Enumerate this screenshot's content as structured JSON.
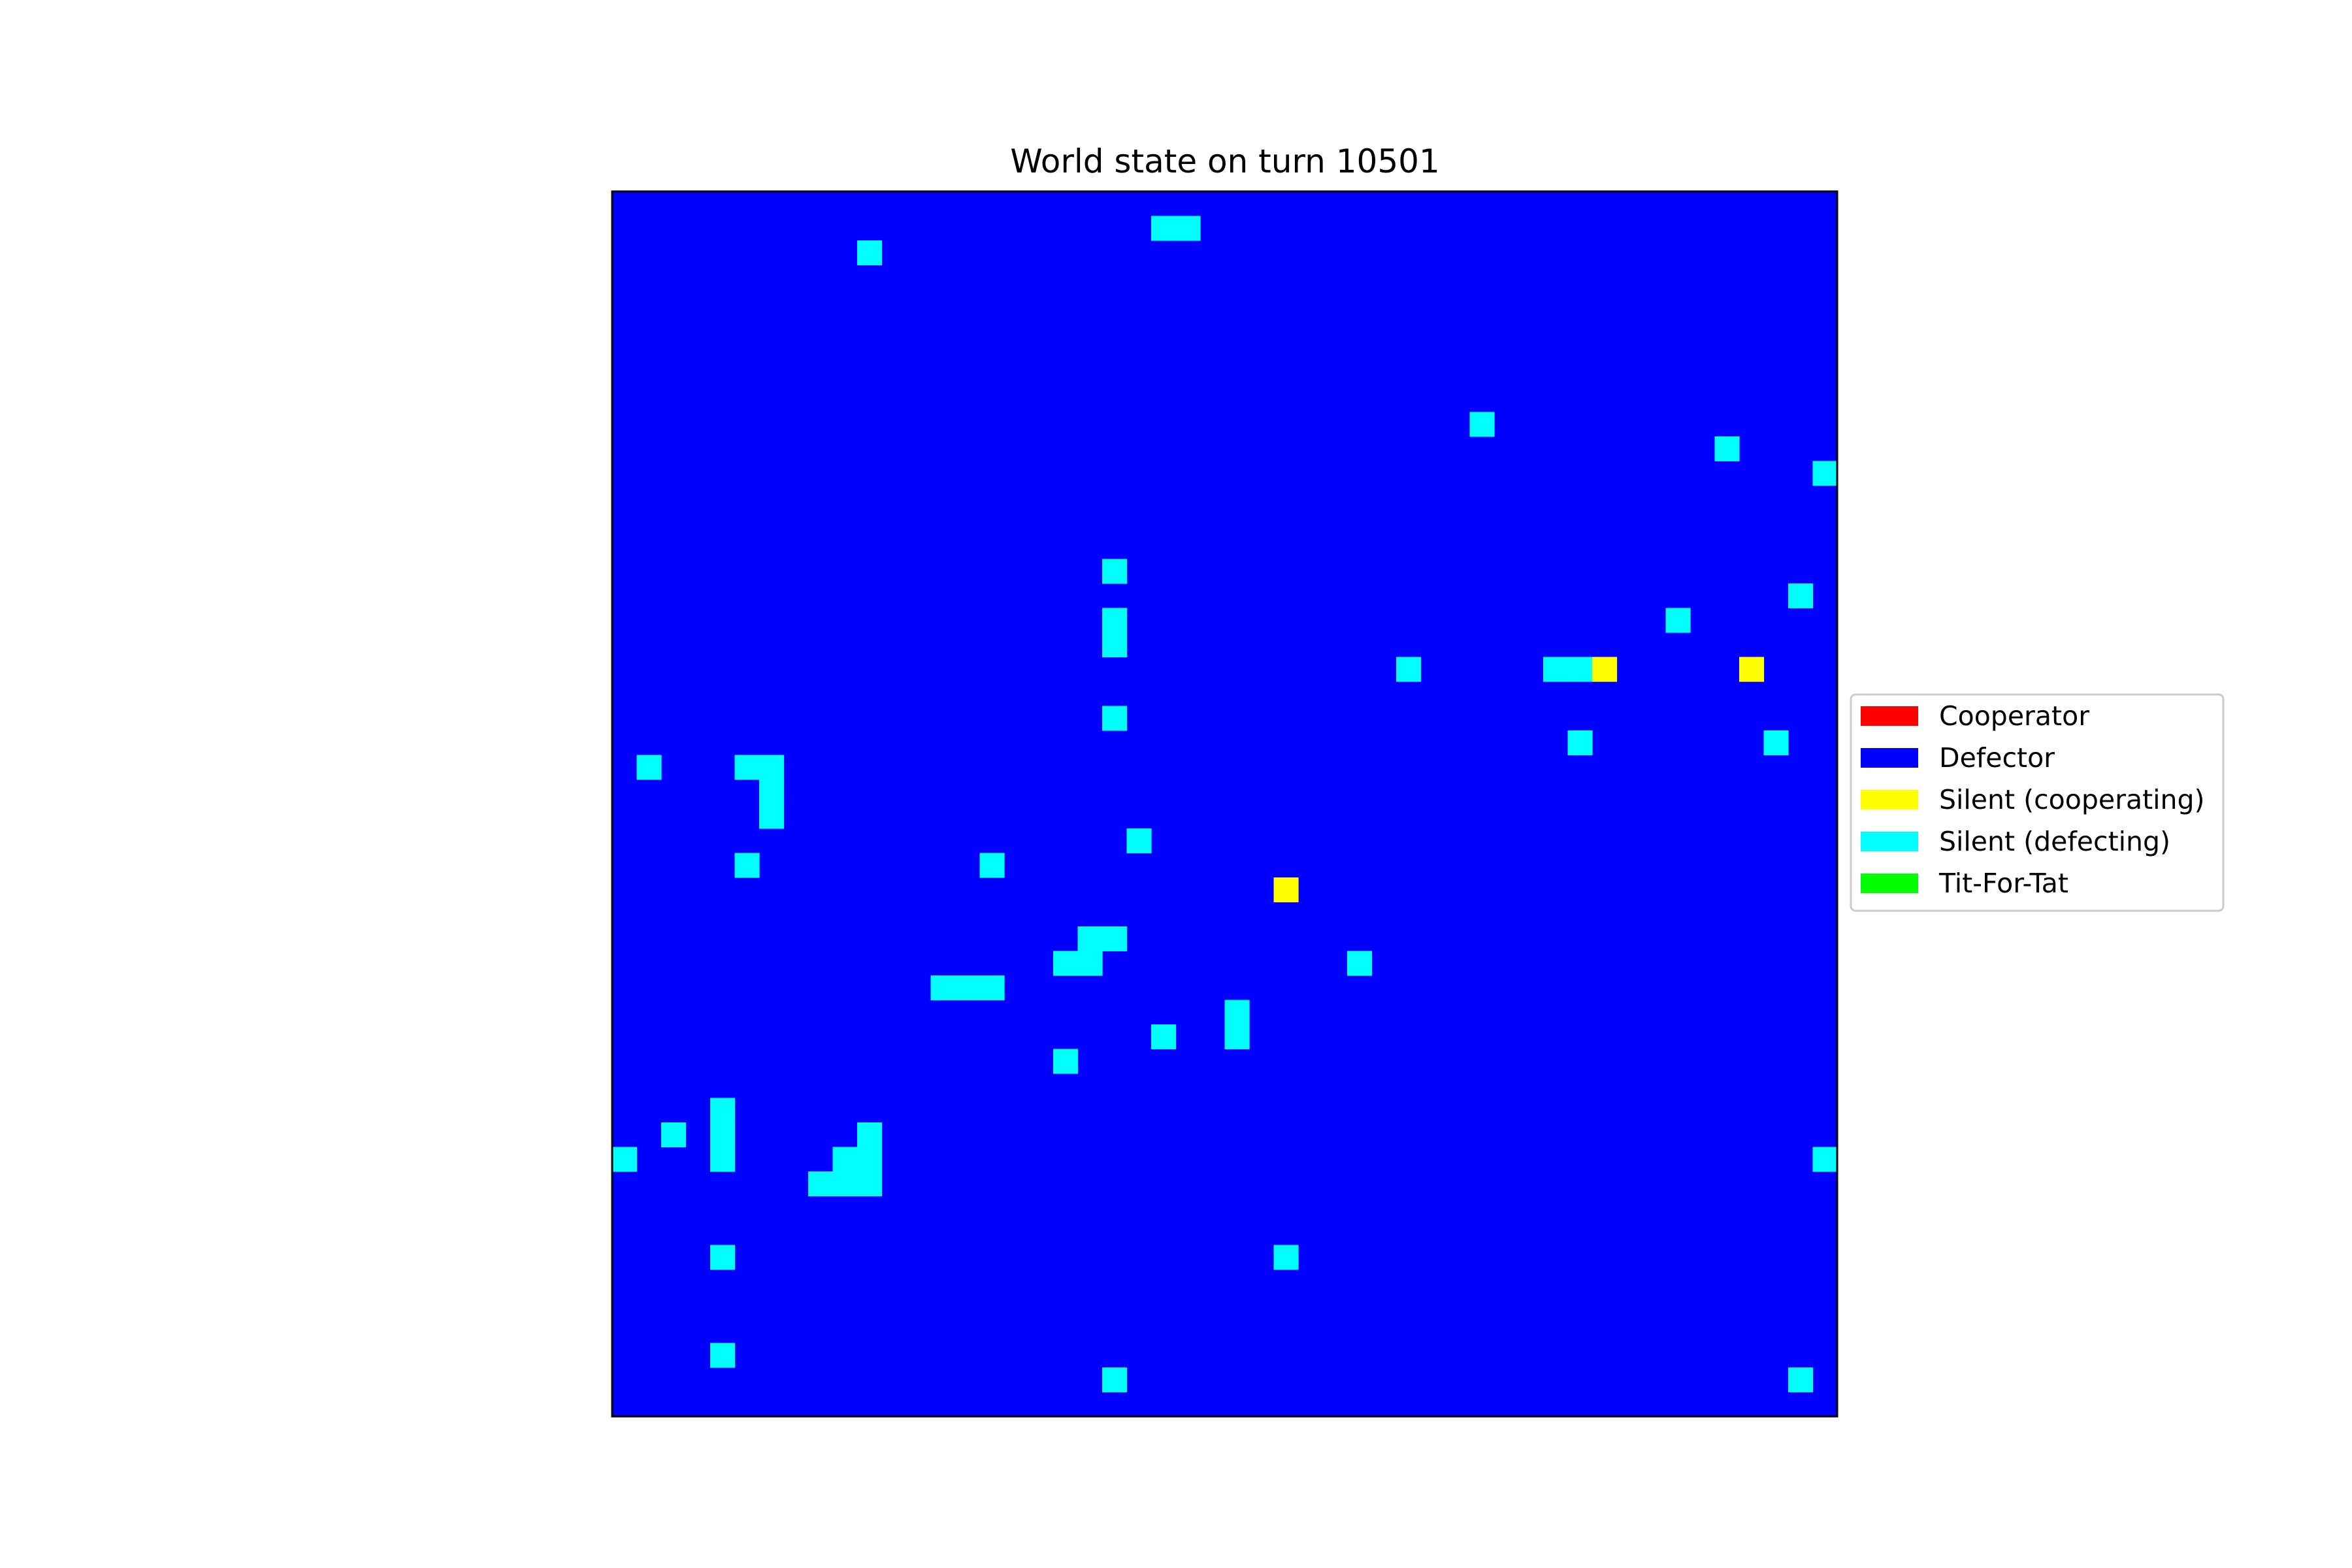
{
  "chart_data": {
    "type": "heatmap",
    "title": "World state on turn 10501",
    "grid": {
      "rows": 50,
      "cols": 50
    },
    "background_state": "Defector",
    "axes_visible": false,
    "legend_placement": "center-right",
    "states": [
      {
        "name": "Cooperator",
        "color": "#ff0000"
      },
      {
        "name": "Defector",
        "color": "#0000ff"
      },
      {
        "name": "Silent (cooperating)",
        "color": "#ffff00"
      },
      {
        "name": "Silent (defecting)",
        "color": "#00ffff"
      },
      {
        "name": "Tit-For-Tat",
        "color": "#00ff00"
      }
    ],
    "cells": [
      {
        "row": 1,
        "col": 22,
        "state": "Silent (defecting)"
      },
      {
        "row": 1,
        "col": 23,
        "state": "Silent (defecting)"
      },
      {
        "row": 2,
        "col": 10,
        "state": "Silent (defecting)"
      },
      {
        "row": 9,
        "col": 35,
        "state": "Silent (defecting)"
      },
      {
        "row": 10,
        "col": 45,
        "state": "Silent (defecting)"
      },
      {
        "row": 11,
        "col": 49,
        "state": "Silent (defecting)"
      },
      {
        "row": 15,
        "col": 20,
        "state": "Silent (defecting)"
      },
      {
        "row": 16,
        "col": 48,
        "state": "Silent (defecting)"
      },
      {
        "row": 17,
        "col": 43,
        "state": "Silent (defecting)"
      },
      {
        "row": 17,
        "col": 20,
        "state": "Silent (defecting)"
      },
      {
        "row": 18,
        "col": 20,
        "state": "Silent (defecting)"
      },
      {
        "row": 19,
        "col": 32,
        "state": "Silent (defecting)"
      },
      {
        "row": 19,
        "col": 38,
        "state": "Silent (defecting)"
      },
      {
        "row": 19,
        "col": 39,
        "state": "Silent (defecting)"
      },
      {
        "row": 19,
        "col": 40,
        "state": "Silent (cooperating)"
      },
      {
        "row": 19,
        "col": 46,
        "state": "Silent (cooperating)"
      },
      {
        "row": 21,
        "col": 20,
        "state": "Silent (defecting)"
      },
      {
        "row": 22,
        "col": 39,
        "state": "Silent (defecting)"
      },
      {
        "row": 22,
        "col": 47,
        "state": "Silent (defecting)"
      },
      {
        "row": 23,
        "col": 1,
        "state": "Silent (defecting)"
      },
      {
        "row": 23,
        "col": 5,
        "state": "Silent (defecting)"
      },
      {
        "row": 23,
        "col": 6,
        "state": "Silent (defecting)"
      },
      {
        "row": 24,
        "col": 6,
        "state": "Silent (defecting)"
      },
      {
        "row": 25,
        "col": 6,
        "state": "Silent (defecting)"
      },
      {
        "row": 26,
        "col": 21,
        "state": "Silent (defecting)"
      },
      {
        "row": 27,
        "col": 5,
        "state": "Silent (defecting)"
      },
      {
        "row": 27,
        "col": 15,
        "state": "Silent (defecting)"
      },
      {
        "row": 28,
        "col": 27,
        "state": "Silent (cooperating)"
      },
      {
        "row": 30,
        "col": 19,
        "state": "Silent (defecting)"
      },
      {
        "row": 30,
        "col": 20,
        "state": "Silent (defecting)"
      },
      {
        "row": 31,
        "col": 18,
        "state": "Silent (defecting)"
      },
      {
        "row": 31,
        "col": 19,
        "state": "Silent (defecting)"
      },
      {
        "row": 31,
        "col": 30,
        "state": "Silent (defecting)"
      },
      {
        "row": 32,
        "col": 13,
        "state": "Silent (defecting)"
      },
      {
        "row": 32,
        "col": 14,
        "state": "Silent (defecting)"
      },
      {
        "row": 32,
        "col": 15,
        "state": "Silent (defecting)"
      },
      {
        "row": 33,
        "col": 25,
        "state": "Silent (defecting)"
      },
      {
        "row": 34,
        "col": 22,
        "state": "Silent (defecting)"
      },
      {
        "row": 34,
        "col": 25,
        "state": "Silent (defecting)"
      },
      {
        "row": 35,
        "col": 18,
        "state": "Silent (defecting)"
      },
      {
        "row": 37,
        "col": 4,
        "state": "Silent (defecting)"
      },
      {
        "row": 38,
        "col": 2,
        "state": "Silent (defecting)"
      },
      {
        "row": 38,
        "col": 4,
        "state": "Silent (defecting)"
      },
      {
        "row": 38,
        "col": 10,
        "state": "Silent (defecting)"
      },
      {
        "row": 39,
        "col": 0,
        "state": "Silent (defecting)"
      },
      {
        "row": 39,
        "col": 4,
        "state": "Silent (defecting)"
      },
      {
        "row": 39,
        "col": 9,
        "state": "Silent (defecting)"
      },
      {
        "row": 39,
        "col": 10,
        "state": "Silent (defecting)"
      },
      {
        "row": 39,
        "col": 49,
        "state": "Silent (defecting)"
      },
      {
        "row": 40,
        "col": 8,
        "state": "Silent (defecting)"
      },
      {
        "row": 40,
        "col": 9,
        "state": "Silent (defecting)"
      },
      {
        "row": 40,
        "col": 10,
        "state": "Silent (defecting)"
      },
      {
        "row": 43,
        "col": 4,
        "state": "Silent (defecting)"
      },
      {
        "row": 43,
        "col": 27,
        "state": "Silent (defecting)"
      },
      {
        "row": 47,
        "col": 4,
        "state": "Silent (defecting)"
      },
      {
        "row": 48,
        "col": 20,
        "state": "Silent (defecting)"
      },
      {
        "row": 48,
        "col": 48,
        "state": "Silent (defecting)"
      }
    ]
  }
}
